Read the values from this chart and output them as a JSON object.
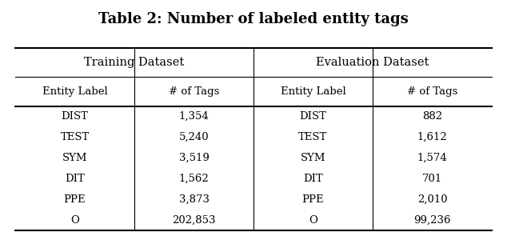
{
  "title": "Table 2: Number of labeled entity tags",
  "title_fontsize": 13,
  "header1": "Training Dataset",
  "header2": "Evaluation Dataset",
  "col_headers": [
    "Entity Label",
    "# of Tags",
    "Entity Label",
    "# of Tags"
  ],
  "rows": [
    [
      "DIST",
      "1,354",
      "DIST",
      "882"
    ],
    [
      "TEST",
      "5,240",
      "TEST",
      "1,612"
    ],
    [
      "SYM",
      "3,519",
      "SYM",
      "1,574"
    ],
    [
      "DIT",
      "1,562",
      "DIT",
      "701"
    ],
    [
      "PPE",
      "3,873",
      "PPE",
      "2,010"
    ],
    [
      "O",
      "202,853",
      "O",
      "99,236"
    ]
  ],
  "background_color": "#ffffff",
  "text_color": "#000000",
  "font_family": "serif"
}
